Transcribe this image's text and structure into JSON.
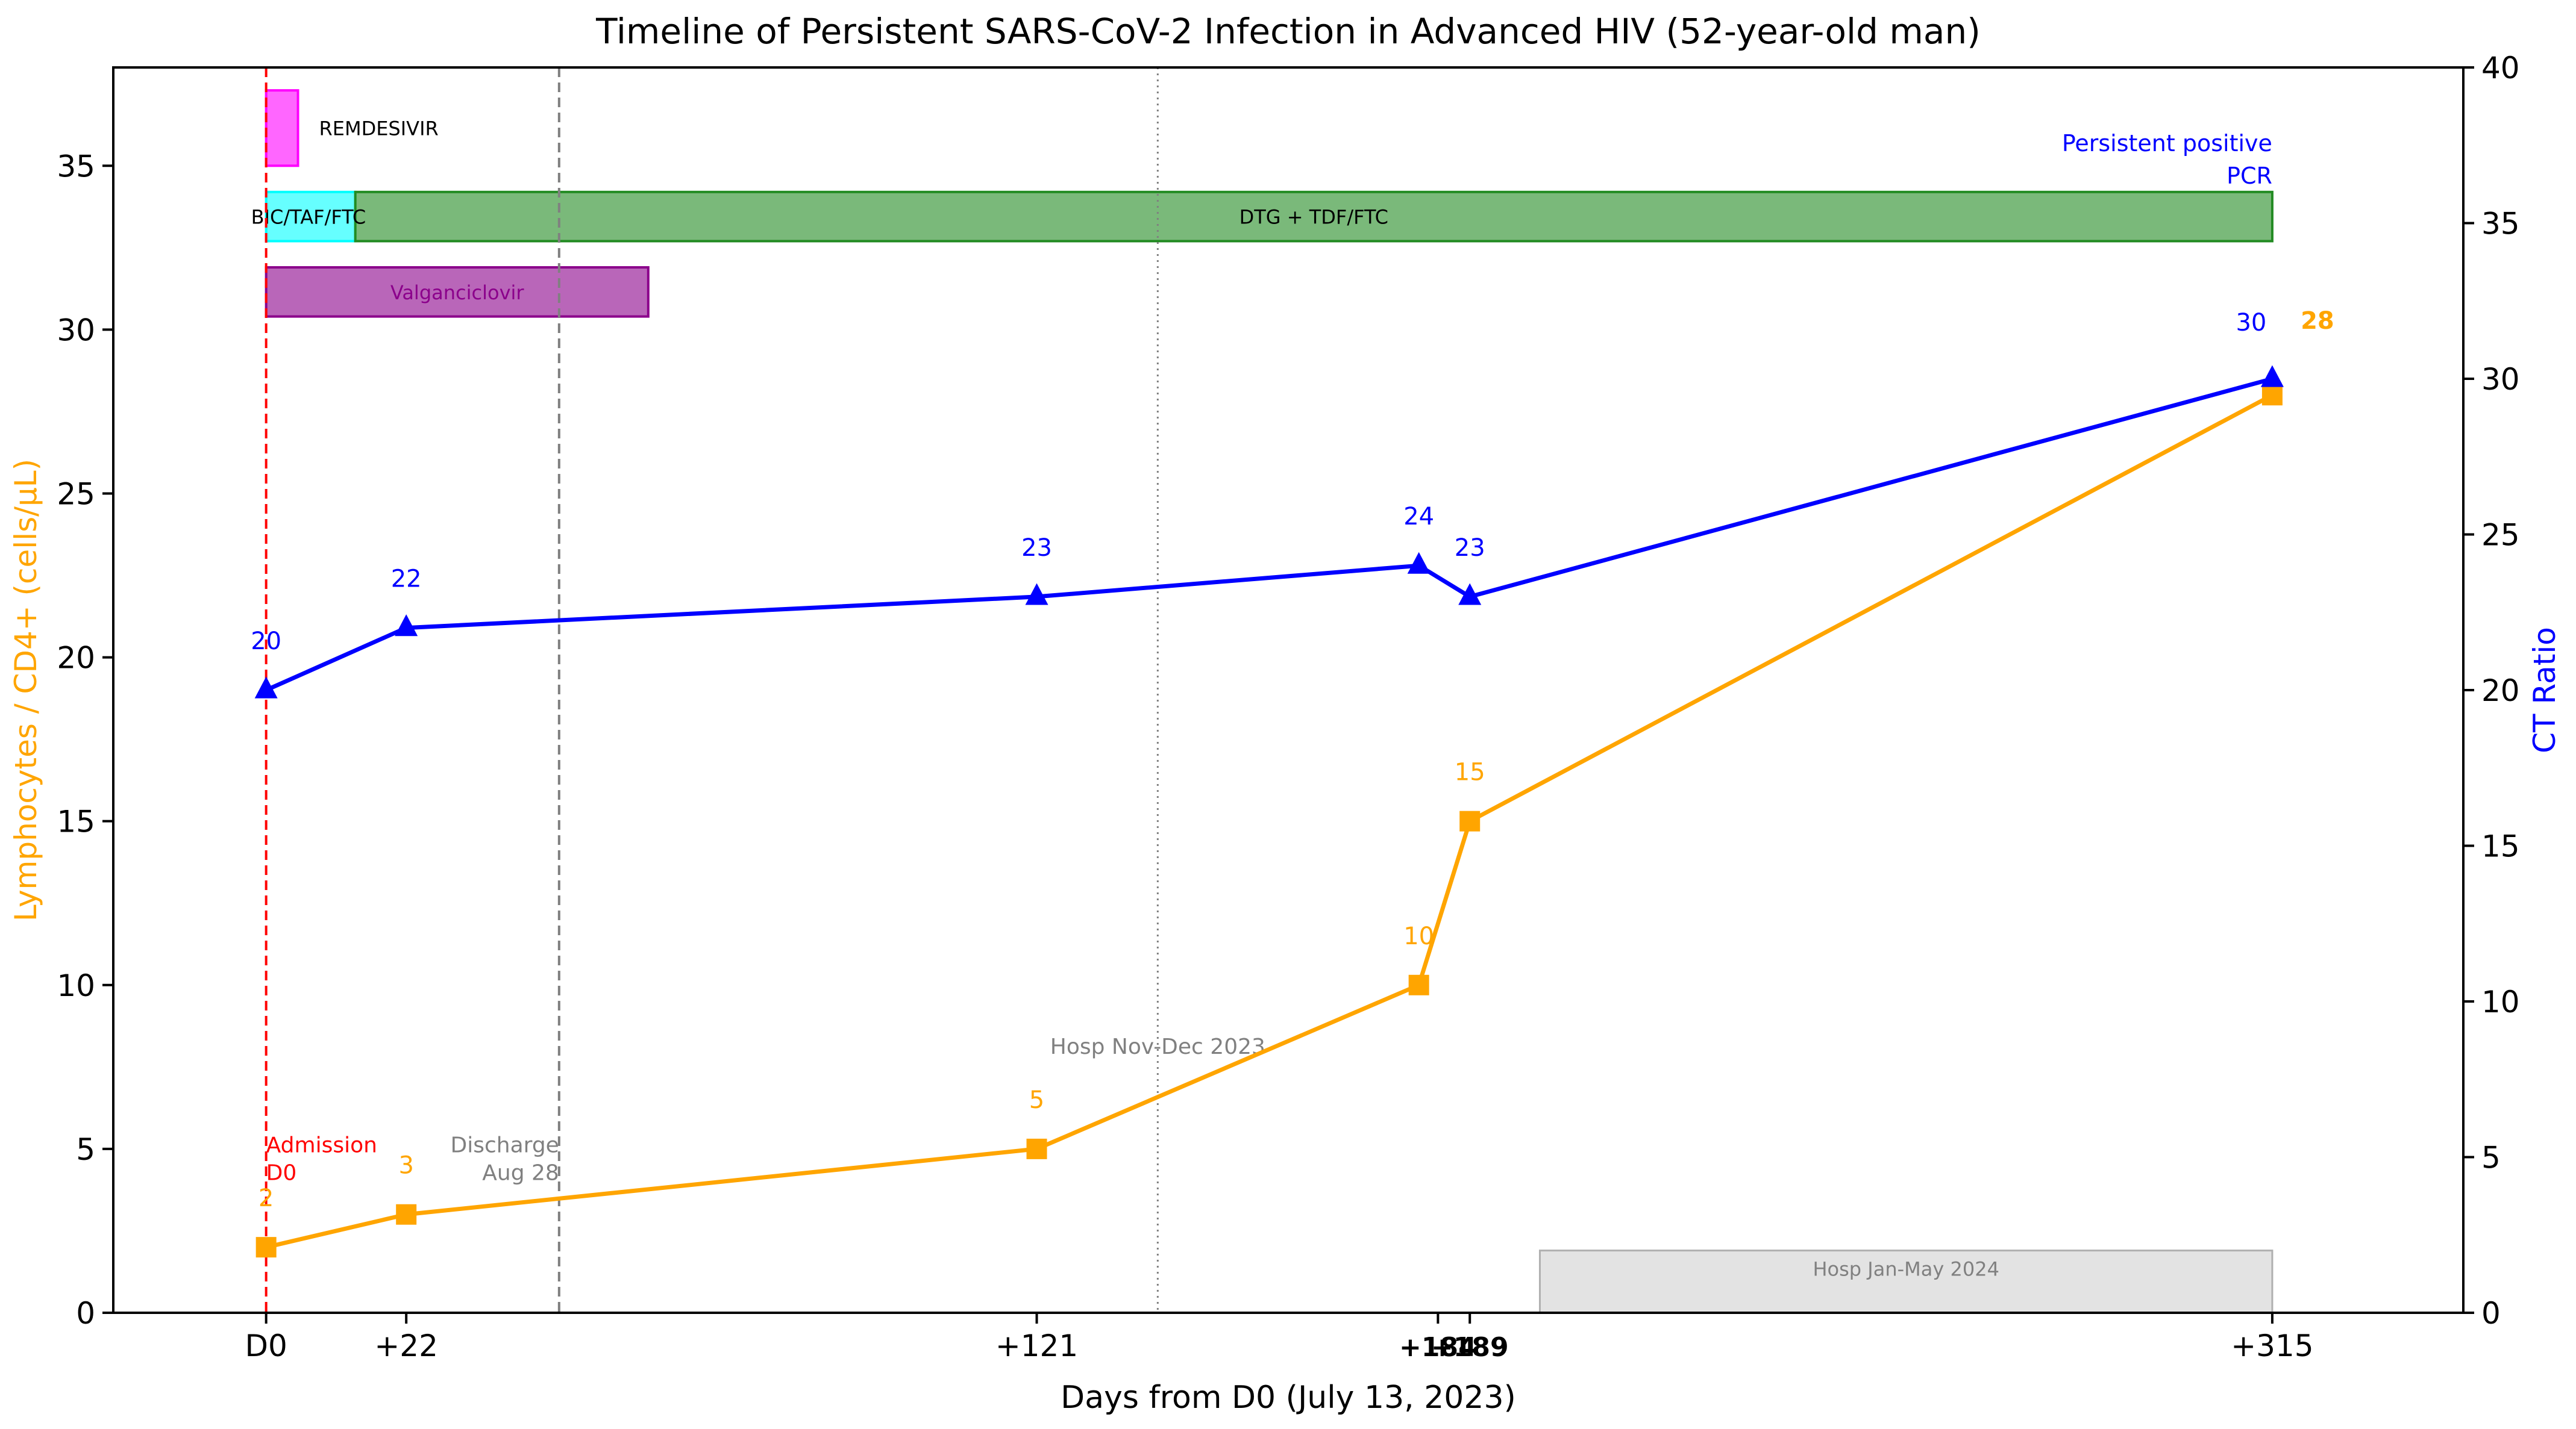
{
  "chart_data": {
    "type": "line",
    "title": "Timeline of Persistent SARS-CoV-2 Infection in Advanced HIV (52-year-old man)",
    "xlabel": "Days from D0 (July 13, 2023)",
    "ylabel_left": "Lymphocytes / CD4+ (cells/µL)",
    "ylabel_right": "CT Ratio",
    "xlim": [
      -24,
      345
    ],
    "ylim_left": [
      0,
      38
    ],
    "ylim_right": [
      0,
      40
    ],
    "left_ticks": [
      0,
      5,
      10,
      15,
      20,
      25,
      30,
      35
    ],
    "right_ticks": [
      0,
      5,
      10,
      15,
      20,
      25,
      30,
      35,
      40
    ],
    "x_ticks": [
      {
        "value": 0,
        "label": "D0",
        "bold": false
      },
      {
        "value": 22,
        "label": "+22",
        "bold": false
      },
      {
        "value": 121,
        "label": "+121",
        "bold": false
      },
      {
        "value": 184,
        "label": "+184",
        "bold": true
      },
      {
        "value": 189,
        "label": "+189",
        "bold": true
      },
      {
        "value": 315,
        "label": "+315",
        "bold": false
      }
    ],
    "series": [
      {
        "name": "CD4+",
        "axis": "left",
        "color": "#FFA500",
        "marker": "square",
        "x": [
          0,
          22,
          121,
          181,
          189,
          315
        ],
        "values": [
          2,
          3,
          5,
          10,
          15,
          28
        ],
        "labels": [
          "2",
          "3",
          "5",
          "10",
          "15",
          "28"
        ]
      },
      {
        "name": "CT Ratio",
        "axis": "right",
        "color": "#0000FF",
        "marker": "triangle",
        "x": [
          0,
          22,
          121,
          181,
          189,
          315
        ],
        "values": [
          20,
          22,
          23,
          24,
          23,
          30
        ],
        "labels": [
          "20",
          "22",
          "23",
          "24",
          "23",
          "30"
        ]
      }
    ],
    "treatments": [
      {
        "label": "REMDESIVIR",
        "start": 0,
        "end": 5,
        "y0": 35,
        "y1": 37.3,
        "color": "#FF00FF"
      },
      {
        "label": "BIC/TAF/FTC",
        "start": 0,
        "end": 14,
        "y0": 32.7,
        "y1": 34.2,
        "color": "#00FFFF"
      },
      {
        "label": "DTG + TDF/FTC",
        "start": 14,
        "end": 315,
        "y0": 32.7,
        "y1": 34.2,
        "color": "#228B22"
      },
      {
        "label": "Valganciclovir",
        "start": 0,
        "end": 60,
        "y0": 30.4,
        "y1": 31.9,
        "color": "#8B008B"
      }
    ],
    "events": [
      {
        "label_lines": [
          "Admission",
          "D0"
        ],
        "x": 0,
        "color": "#FF0000",
        "style": "dashed"
      },
      {
        "label_lines": [
          "Discharge",
          "Aug 28"
        ],
        "x": 46,
        "color": "#808080",
        "style": "dashed"
      },
      {
        "label_lines": [
          "Hosp Nov-Dec 2023"
        ],
        "x": 140,
        "color": "#808080",
        "style": "dotted"
      }
    ],
    "hospitalization_band": {
      "label": "Hosp Jan-May 2024",
      "start": 200,
      "end": 315,
      "y0": 0,
      "y1": 1.9
    },
    "annotation": {
      "lines": [
        "Persistent positive",
        "PCR"
      ],
      "color": "#0000FF"
    }
  }
}
